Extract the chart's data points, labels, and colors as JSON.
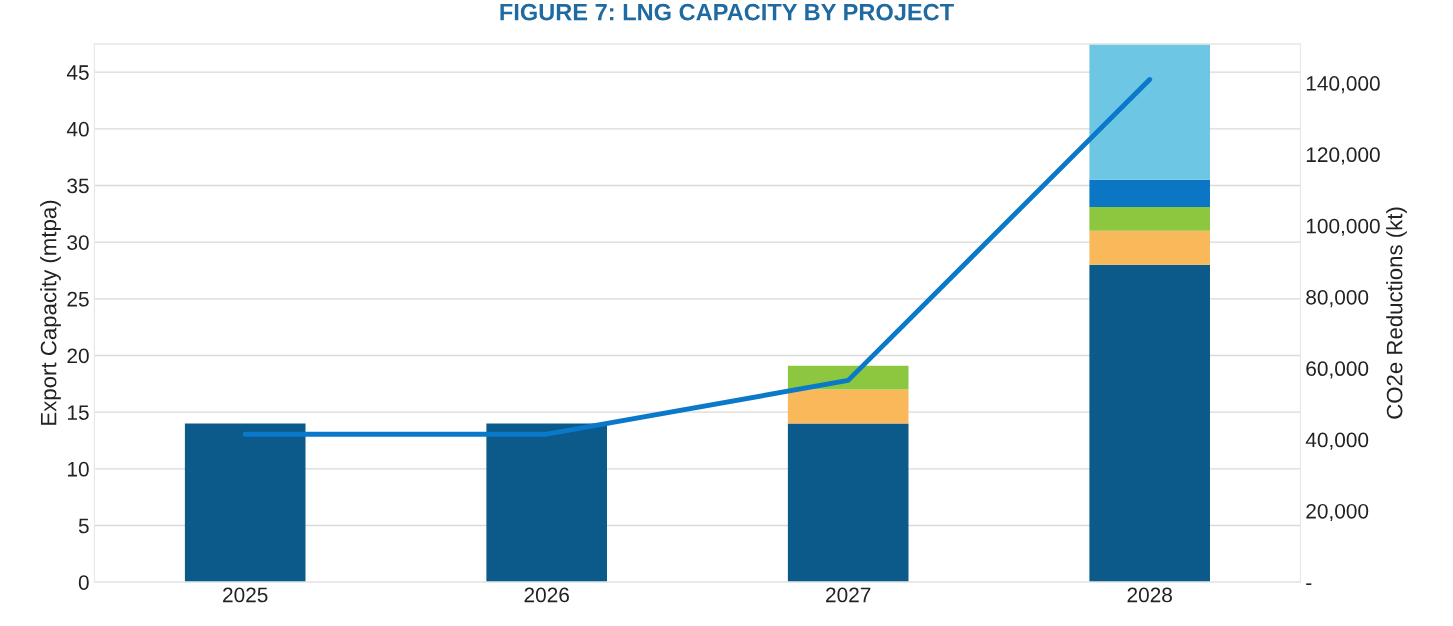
{
  "chart_data": {
    "type": "bar",
    "title": "FIGURE 7: LNG CAPACITY BY PROJECT",
    "ylabel": "Export Capacity (mtpa)",
    "y2label": "CO2e Reductions (kt)",
    "categories": [
      "2025",
      "2026",
      "2027",
      "2028"
    ],
    "stacked": true,
    "series": [
      {
        "color": "#0b5a8a",
        "values": [
          14,
          14,
          14,
          28
        ]
      },
      {
        "color": "#f9b95a",
        "values": [
          null,
          null,
          3,
          3
        ]
      },
      {
        "color": "#8dc63f",
        "values": [
          null,
          null,
          2.1,
          2.1
        ]
      },
      {
        "color": "#0a76c4",
        "values": [
          null,
          null,
          null,
          2.4
        ]
      },
      {
        "color": "#6cc6e4",
        "values": [
          null,
          null,
          null,
          12
        ]
      },
      {
        "type": "line",
        "axis": "y2",
        "color": "#0a79c9",
        "values": [
          41500,
          41500,
          56600,
          141000
        ]
      }
    ],
    "ylim": [
      0,
      47.5
    ],
    "yticks": [
      0,
      5,
      10,
      15,
      20,
      25,
      30,
      35,
      40,
      45
    ],
    "y2lim": [
      0,
      151000
    ],
    "y2ticks": [
      {
        "value": 0,
        "label": "-"
      },
      {
        "value": 20000,
        "label": "20,000"
      },
      {
        "value": 40000,
        "label": "40,000"
      },
      {
        "value": 60000,
        "label": "60,000"
      },
      {
        "value": 80000,
        "label": "80,000"
      },
      {
        "value": 100000,
        "label": "100,000"
      },
      {
        "value": 120000,
        "label": "120,000"
      },
      {
        "value": 140000,
        "label": "140,000"
      }
    ],
    "grid": "y",
    "legend": false
  }
}
